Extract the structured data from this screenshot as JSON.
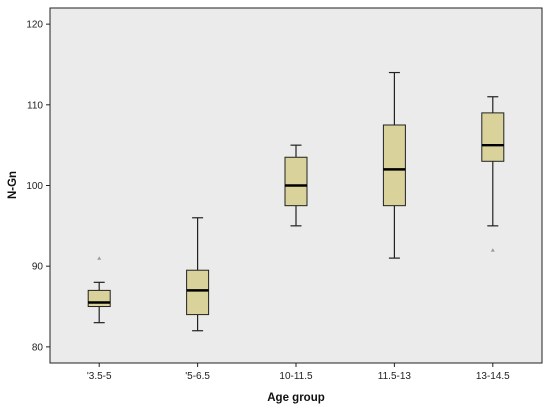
{
  "chart_data": {
    "type": "boxplot",
    "xlabel": "Age group",
    "ylabel": "N-Gn",
    "ylim": [
      78,
      122
    ],
    "yticks": [
      80,
      90,
      100,
      110,
      120
    ],
    "grid": false,
    "colors": {
      "plot_bg": "#ebebeb",
      "box_fill": "#d9d29b",
      "box_stroke": "#222222",
      "outlier": "#999999"
    },
    "categories": [
      "'3.5-5",
      "'5-6.5",
      "10-11.5",
      "11.5-13",
      "13-14.5"
    ],
    "boxes": [
      {
        "category": "'3.5-5",
        "min": 83,
        "q1": 85,
        "median": 85.5,
        "q3": 87,
        "max": 88,
        "outliers": [
          91
        ]
      },
      {
        "category": "'5-6.5",
        "min": 82,
        "q1": 84,
        "median": 87,
        "q3": 89.5,
        "max": 96,
        "outliers": []
      },
      {
        "category": "10-11.5",
        "min": 95,
        "q1": 97.5,
        "median": 100,
        "q3": 103.5,
        "max": 105,
        "outliers": []
      },
      {
        "category": "11.5-13",
        "min": 91,
        "q1": 97.5,
        "median": 102,
        "q3": 107.5,
        "max": 114,
        "outliers": []
      },
      {
        "category": "13-14.5",
        "min": 95,
        "q1": 103,
        "median": 105,
        "q3": 109,
        "max": 111,
        "outliers": [
          92
        ]
      }
    ]
  }
}
